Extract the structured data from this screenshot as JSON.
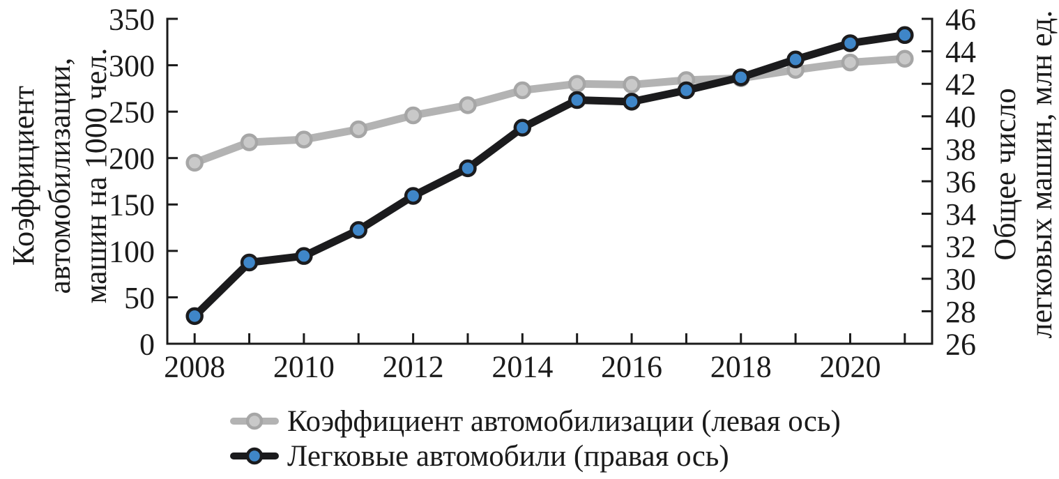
{
  "chart_data": {
    "type": "line",
    "title": "",
    "background": "#ffffff",
    "axis_color": "#1a1a1a",
    "x": [
      2008,
      2009,
      2010,
      2011,
      2012,
      2013,
      2014,
      2015,
      2016,
      2017,
      2018,
      2019,
      2020,
      2021
    ],
    "x_axis": {
      "tick_years": [
        2008,
        2009,
        2010,
        2011,
        2012,
        2013,
        2014,
        2015,
        2016,
        2017,
        2018,
        2019,
        2020,
        2021
      ],
      "label_years": [
        "2008",
        "2010",
        "2012",
        "2014",
        "2016",
        "2018",
        "2020"
      ],
      "label_year_indices": [
        0,
        2,
        4,
        6,
        8,
        10,
        12
      ]
    },
    "left_axis": {
      "label_lines": [
        "Коэффициент",
        "автомобилизации,",
        "машин на 1000 чел."
      ],
      "min": 0,
      "max": 350,
      "step": 50,
      "ticks": [
        "0",
        "50",
        "100",
        "150",
        "200",
        "250",
        "300",
        "350"
      ]
    },
    "right_axis": {
      "label_lines": [
        "Общее число",
        "легковых машин, млн ед."
      ],
      "min": 26,
      "max": 46,
      "step": 2,
      "ticks": [
        "26",
        "28",
        "30",
        "32",
        "34",
        "36",
        "38",
        "40",
        "42",
        "44",
        "46"
      ]
    },
    "series": [
      {
        "name": "Коэффициент автомобилизации (левая ось)",
        "axis": "left",
        "color": "#b3b3b3",
        "marker_fill": "#c9c9c9",
        "marker_stroke": "#a6a6a6",
        "values": [
          195,
          217,
          220,
          231,
          246,
          257,
          273,
          280,
          279,
          284,
          286,
          295,
          303,
          307
        ]
      },
      {
        "name": "Легковые автомобили (правая ось)",
        "axis": "right",
        "color": "#1b1b1d",
        "marker_fill": "#3f86c8",
        "marker_stroke": "#1b1b1d",
        "values": [
          27.7,
          31.0,
          31.4,
          33.0,
          35.1,
          36.8,
          39.3,
          41.0,
          40.9,
          41.6,
          42.4,
          43.5,
          44.5,
          45.0
        ]
      }
    ],
    "legend": {
      "position": "bottom-left",
      "items": [
        {
          "label": "Коэффициент автомобилизации (левая ось)"
        },
        {
          "label": "Легковые автомобили (правая ось)"
        }
      ]
    }
  }
}
